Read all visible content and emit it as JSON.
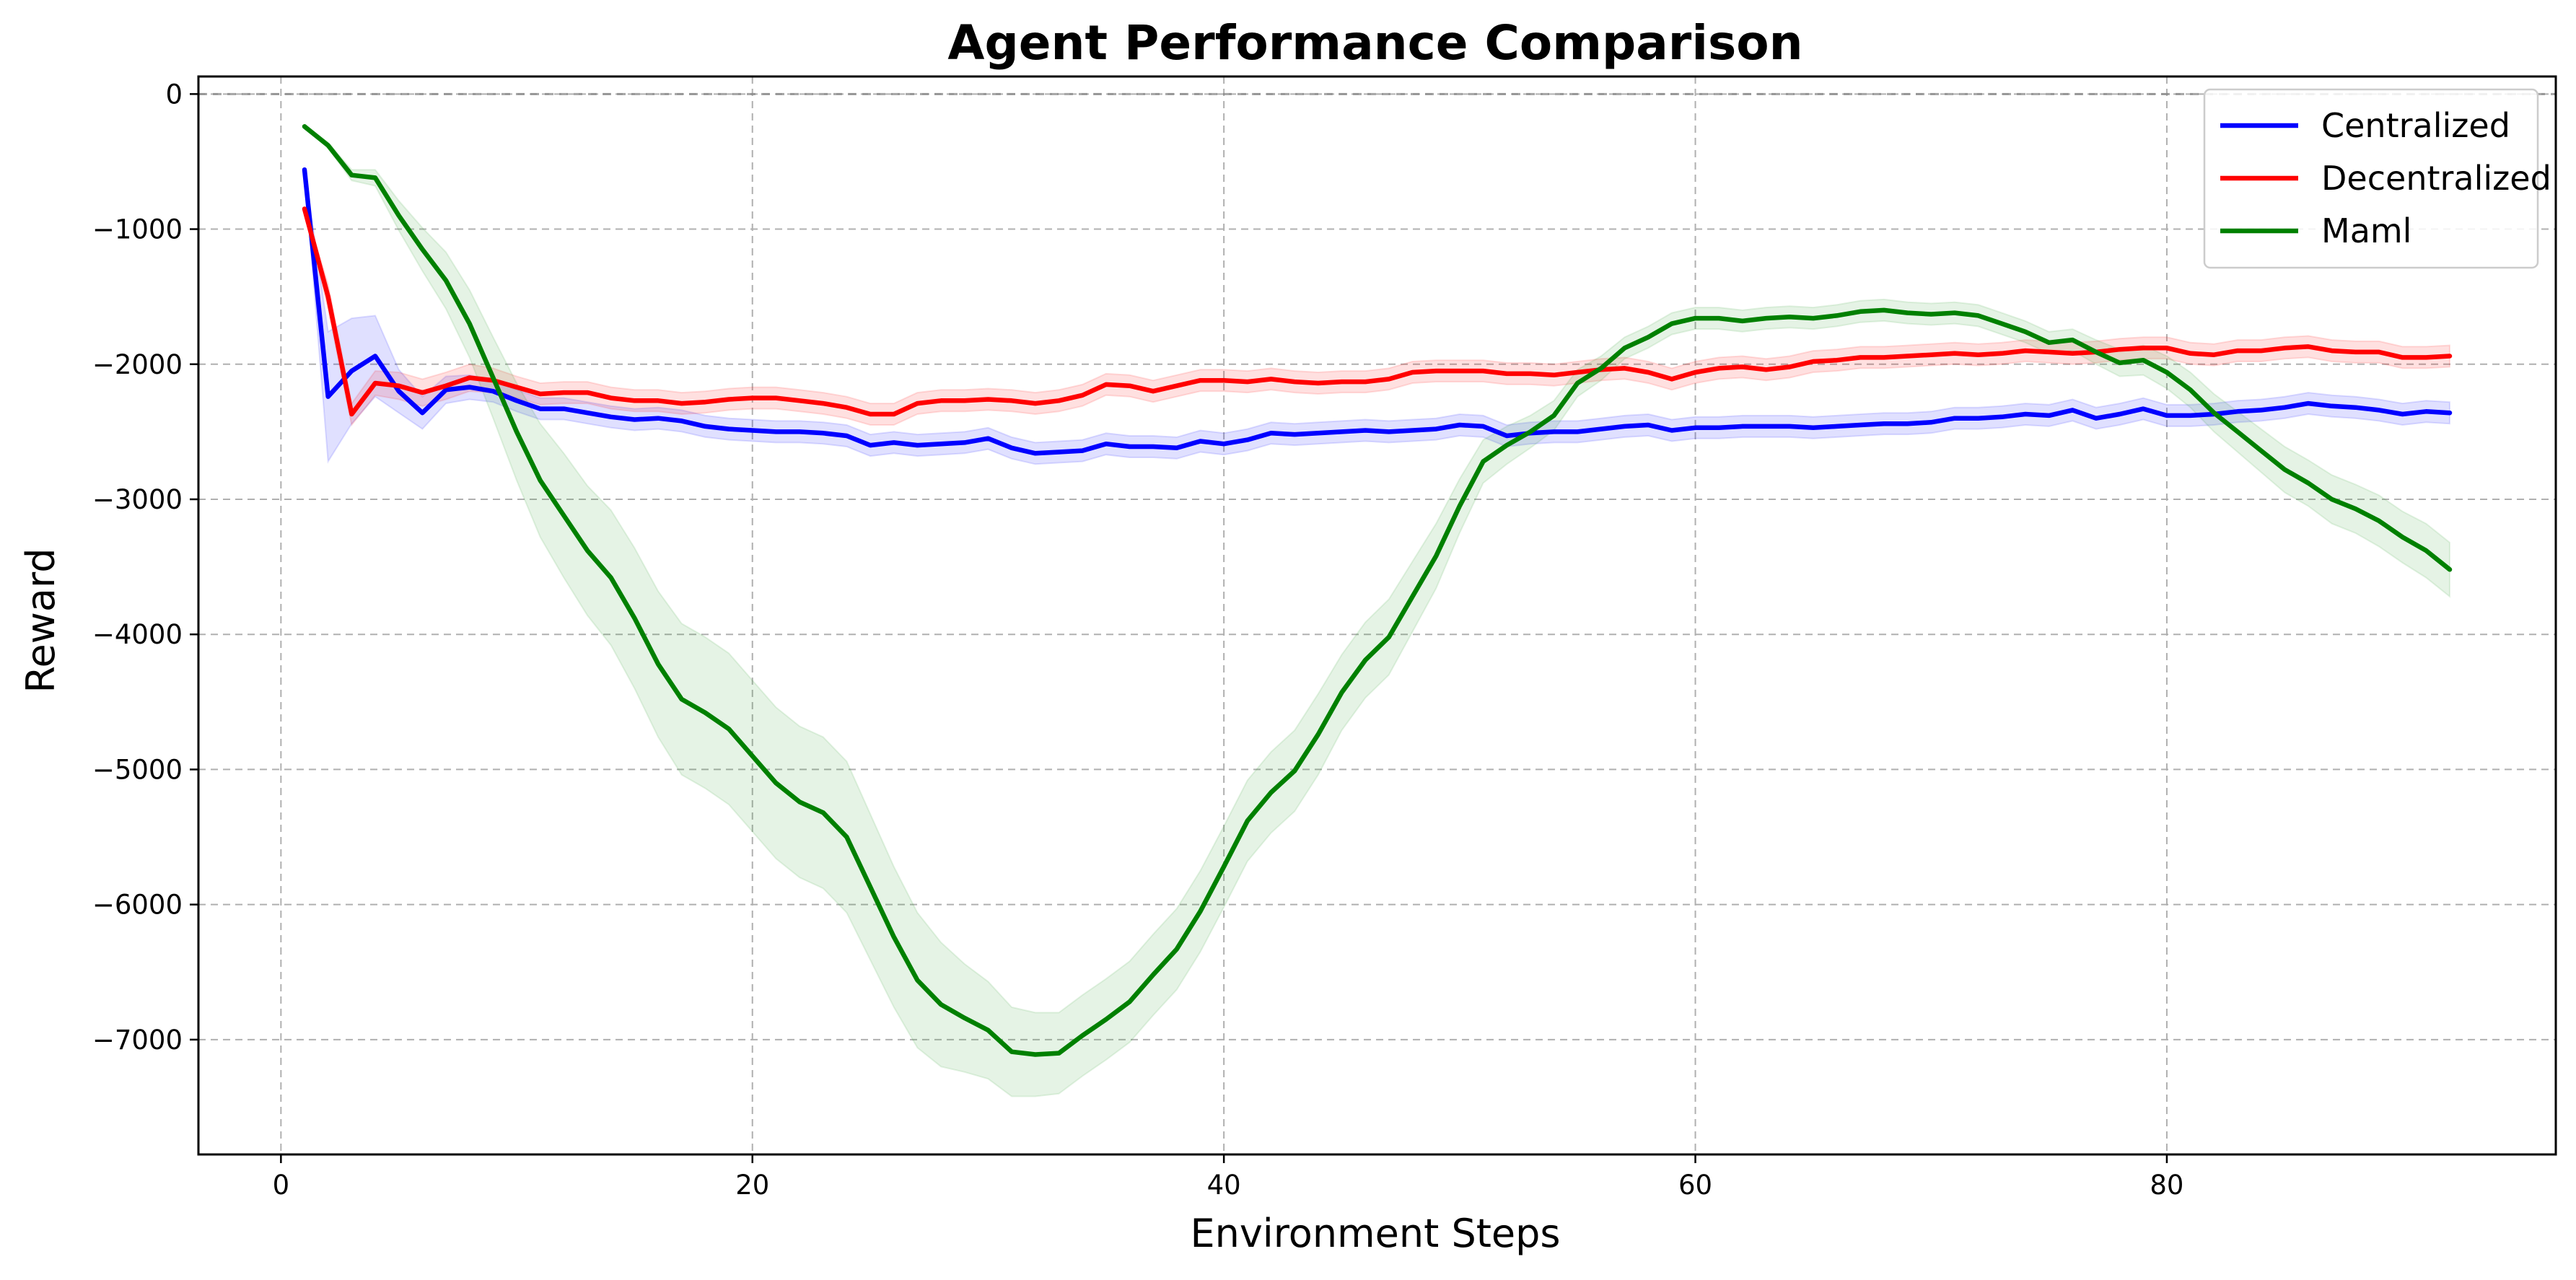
{
  "chart_data": {
    "type": "line",
    "title": "Agent Performance Comparison",
    "xlabel": "Environment Steps",
    "ylabel": "Reward",
    "xlim": [
      -3.5,
      96.5
    ],
    "ylim": [
      -7850,
      130
    ],
    "xticks": [
      0,
      20,
      40,
      60,
      80
    ],
    "yticks": [
      0,
      -1000,
      -2000,
      -3000,
      -4000,
      -5000,
      -6000,
      -7000
    ],
    "ytick_labels": [
      "0",
      "−1000",
      "−2000",
      "−3000",
      "−4000",
      "−5000",
      "−6000",
      "−7000"
    ],
    "grid": true,
    "reference_line_y": 0,
    "legend_position": "top-right",
    "x": [
      1,
      2,
      3,
      4,
      5,
      6,
      7,
      8,
      9,
      10,
      11,
      12,
      13,
      14,
      15,
      16,
      17,
      18,
      19,
      20,
      21,
      22,
      23,
      24,
      25,
      26,
      27,
      28,
      29,
      30,
      31,
      32,
      33,
      34,
      35,
      36,
      37,
      38,
      39,
      40,
      41,
      42,
      43,
      44,
      45,
      46,
      47,
      48,
      49,
      50,
      51,
      52,
      53,
      54,
      55,
      56,
      57,
      58,
      59,
      60,
      61,
      62,
      63,
      64,
      65,
      66,
      67,
      68,
      69,
      70,
      71,
      72,
      73,
      74,
      75,
      76,
      77,
      78,
      79,
      80,
      81,
      82,
      83,
      84,
      85,
      86,
      87,
      88,
      89,
      90,
      91,
      92
    ],
    "series": [
      {
        "name": "Centralized",
        "color": "#0000ff",
        "band_color": "#0000ff",
        "values": [
          -560,
          -2240,
          -2050,
          -1940,
          -2200,
          -2360,
          -2190,
          -2170,
          -2200,
          -2270,
          -2330,
          -2330,
          -2360,
          -2390,
          -2410,
          -2400,
          -2420,
          -2460,
          -2480,
          -2490,
          -2500,
          -2500,
          -2510,
          -2530,
          -2600,
          -2580,
          -2600,
          -2590,
          -2580,
          -2550,
          -2620,
          -2660,
          -2650,
          -2640,
          -2590,
          -2610,
          -2610,
          -2620,
          -2570,
          -2590,
          -2560,
          -2510,
          -2520,
          -2510,
          -2500,
          -2490,
          -2500,
          -2490,
          -2480,
          -2450,
          -2460,
          -2530,
          -2510,
          -2500,
          -2500,
          -2480,
          -2460,
          -2450,
          -2490,
          -2470,
          -2470,
          -2460,
          -2460,
          -2460,
          -2470,
          -2460,
          -2450,
          -2440,
          -2440,
          -2430,
          -2400,
          -2400,
          -2390,
          -2370,
          -2380,
          -2340,
          -2400,
          -2370,
          -2330,
          -2380,
          -2380,
          -2370,
          -2350,
          -2340,
          -2320,
          -2290,
          -2310,
          -2320,
          -2340,
          -2370,
          -2350,
          -2360
        ],
        "band_width": [
          10,
          480,
          390,
          300,
          160,
          120,
          100,
          90,
          80,
          80,
          80,
          80,
          80,
          80,
          80,
          80,
          80,
          80,
          80,
          80,
          80,
          80,
          80,
          80,
          80,
          80,
          80,
          80,
          80,
          80,
          80,
          80,
          80,
          80,
          80,
          80,
          80,
          80,
          80,
          80,
          80,
          80,
          80,
          80,
          80,
          80,
          80,
          80,
          80,
          80,
          80,
          80,
          80,
          80,
          80,
          80,
          80,
          80,
          80,
          80,
          80,
          80,
          80,
          80,
          80,
          80,
          80,
          80,
          80,
          80,
          80,
          80,
          80,
          80,
          80,
          80,
          80,
          80,
          80,
          80,
          80,
          80,
          80,
          80,
          80,
          80,
          80,
          80,
          80,
          80,
          80,
          80
        ]
      },
      {
        "name": "Decentralized",
        "color": "#ff0000",
        "band_color": "#ff0000",
        "values": [
          -850,
          -1500,
          -2370,
          -2140,
          -2160,
          -2210,
          -2160,
          -2100,
          -2120,
          -2170,
          -2220,
          -2210,
          -2210,
          -2250,
          -2270,
          -2270,
          -2290,
          -2280,
          -2260,
          -2250,
          -2250,
          -2270,
          -2290,
          -2320,
          -2370,
          -2370,
          -2290,
          -2270,
          -2270,
          -2260,
          -2270,
          -2290,
          -2270,
          -2230,
          -2150,
          -2160,
          -2200,
          -2160,
          -2120,
          -2120,
          -2130,
          -2110,
          -2130,
          -2140,
          -2130,
          -2130,
          -2110,
          -2060,
          -2050,
          -2050,
          -2050,
          -2070,
          -2070,
          -2080,
          -2060,
          -2040,
          -2030,
          -2060,
          -2110,
          -2060,
          -2030,
          -2020,
          -2040,
          -2020,
          -1980,
          -1970,
          -1950,
          -1950,
          -1940,
          -1930,
          -1920,
          -1930,
          -1920,
          -1900,
          -1910,
          -1920,
          -1910,
          -1890,
          -1880,
          -1880,
          -1920,
          -1930,
          -1900,
          -1900,
          -1880,
          -1870,
          -1900,
          -1910,
          -1910,
          -1950,
          -1950,
          -1940
        ],
        "band_width": [
          10,
          90,
          80,
          90,
          100,
          100,
          100,
          100,
          90,
          80,
          80,
          80,
          80,
          80,
          80,
          80,
          80,
          80,
          80,
          80,
          80,
          80,
          80,
          80,
          80,
          80,
          80,
          80,
          80,
          80,
          80,
          80,
          80,
          80,
          80,
          80,
          80,
          80,
          80,
          80,
          80,
          80,
          80,
          80,
          80,
          80,
          80,
          80,
          80,
          80,
          80,
          80,
          80,
          80,
          80,
          80,
          80,
          80,
          80,
          80,
          80,
          80,
          80,
          80,
          80,
          80,
          80,
          80,
          80,
          80,
          80,
          80,
          80,
          80,
          80,
          80,
          80,
          80,
          80,
          80,
          80,
          80,
          80,
          80,
          80,
          80,
          80,
          80,
          80,
          80,
          80,
          80
        ]
      },
      {
        "name": "Maml",
        "color": "#008000",
        "band_color": "#2ca02c",
        "values": [
          -240,
          -380,
          -600,
          -620,
          -900,
          -1150,
          -1380,
          -1700,
          -2100,
          -2500,
          -2860,
          -3120,
          -3380,
          -3580,
          -3880,
          -4220,
          -4480,
          -4580,
          -4700,
          -4900,
          -5100,
          -5240,
          -5320,
          -5500,
          -5870,
          -6240,
          -6560,
          -6740,
          -6840,
          -6930,
          -7090,
          -7110,
          -7100,
          -6970,
          -6850,
          -6720,
          -6520,
          -6330,
          -6050,
          -5720,
          -5380,
          -5170,
          -5010,
          -4740,
          -4430,
          -4190,
          -4020,
          -3720,
          -3420,
          -3050,
          -2720,
          -2600,
          -2500,
          -2380,
          -2140,
          -2030,
          -1880,
          -1800,
          -1700,
          -1660,
          -1660,
          -1680,
          -1660,
          -1650,
          -1660,
          -1640,
          -1610,
          -1600,
          -1620,
          -1630,
          -1620,
          -1640,
          -1700,
          -1760,
          -1840,
          -1820,
          -1910,
          -1990,
          -1970,
          -2060,
          -2190,
          -2360,
          -2500,
          -2640,
          -2780,
          -2880,
          -3000,
          -3070,
          -3160,
          -3280,
          -3380,
          -3520
        ],
        "band_width": [
          10,
          20,
          40,
          60,
          110,
          160,
          210,
          250,
          300,
          360,
          420,
          460,
          480,
          500,
          520,
          540,
          560,
          560,
          560,
          560,
          560,
          560,
          560,
          560,
          540,
          520,
          500,
          460,
          400,
          360,
          330,
          310,
          300,
          300,
          300,
          300,
          300,
          300,
          300,
          300,
          300,
          300,
          300,
          300,
          280,
          280,
          280,
          260,
          240,
          200,
          160,
          140,
          120,
          110,
          100,
          90,
          80,
          80,
          80,
          80,
          80,
          80,
          80,
          80,
          80,
          80,
          80,
          80,
          80,
          80,
          80,
          80,
          80,
          80,
          80,
          80,
          90,
          100,
          110,
          120,
          130,
          140,
          150,
          160,
          170,
          170,
          180,
          180,
          190,
          190,
          200,
          200
        ]
      }
    ]
  }
}
